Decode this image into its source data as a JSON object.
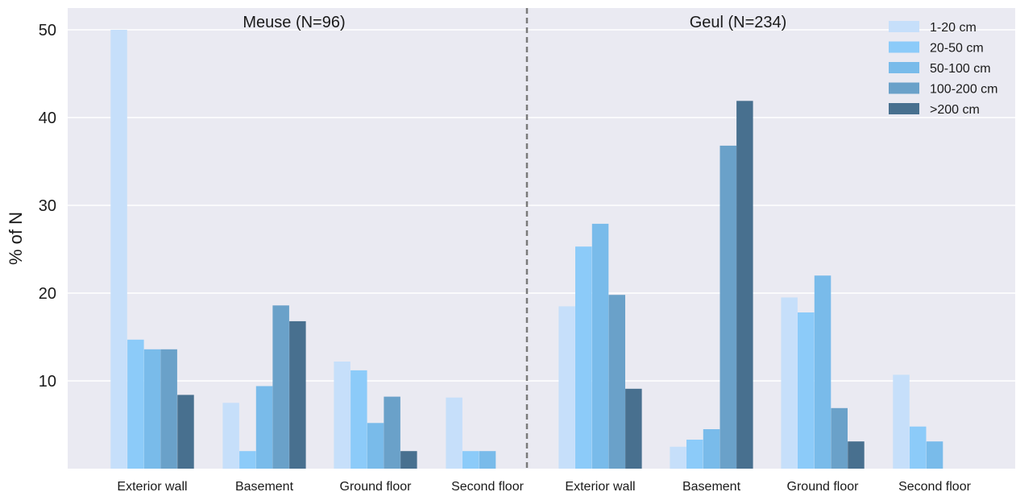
{
  "chart_data": {
    "type": "bar",
    "ylabel": "% of N",
    "ylim": [
      0,
      52
    ],
    "yticks": [
      10,
      20,
      30,
      40,
      50
    ],
    "grid": true,
    "legend_placement": "top-right",
    "categories": [
      "Exterior wall",
      "Basement",
      "Ground floor",
      "Second floor",
      "Exterior wall",
      "Basement",
      "Ground floor",
      "Second floor"
    ],
    "panels": [
      {
        "title": "Meuse (N=96)",
        "categories": [
          "Exterior wall",
          "Basement",
          "Ground floor",
          "Second floor"
        ],
        "series": [
          {
            "name": "1-20 cm",
            "values": [
              50.0,
              7.5,
              12.2,
              8.1
            ]
          },
          {
            "name": "20-50 cm",
            "values": [
              14.7,
              2.0,
              11.2,
              2.0
            ]
          },
          {
            "name": "50-100 cm",
            "values": [
              13.6,
              9.4,
              5.2,
              2.0
            ]
          },
          {
            "name": "100-200 cm",
            "values": [
              13.6,
              18.6,
              8.2,
              0
            ]
          },
          {
            "name": ">200 cm",
            "values": [
              8.4,
              16.8,
              2.0,
              0
            ]
          }
        ]
      },
      {
        "title": "Geul (N=234)",
        "categories": [
          "Exterior wall",
          "Basement",
          "Ground floor",
          "Second floor"
        ],
        "series": [
          {
            "name": "1-20 cm",
            "values": [
              18.5,
              2.5,
              19.5,
              10.7
            ]
          },
          {
            "name": "20-50 cm",
            "values": [
              25.3,
              3.3,
              17.8,
              4.8
            ]
          },
          {
            "name": "50-100 cm",
            "values": [
              27.9,
              4.5,
              22.0,
              3.1
            ]
          },
          {
            "name": "100-200 cm",
            "values": [
              19.8,
              36.8,
              6.9,
              0
            ]
          },
          {
            "name": ">200 cm",
            "values": [
              9.1,
              41.9,
              3.1,
              0
            ]
          }
        ]
      }
    ],
    "colors": [
      "#c6dffa",
      "#8ccbf9",
      "#79bbea",
      "#6aa1c9",
      "#48708f"
    ]
  }
}
